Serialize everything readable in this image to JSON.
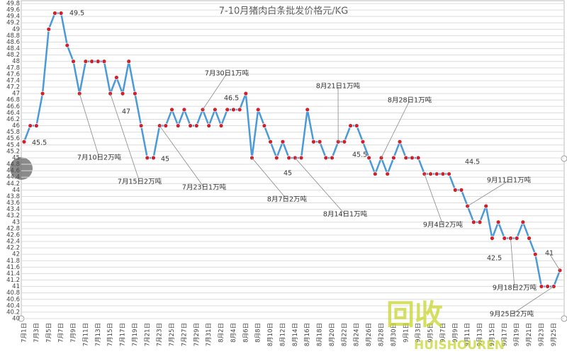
{
  "chart_data": {
    "type": "line",
    "title": "7-10月猪肉白条批发价格元/KG",
    "categories": [
      "7月1日",
      null,
      "7月3日",
      null,
      "7月5日",
      null,
      "7月7日",
      null,
      "7月9日",
      null,
      "7月11日",
      null,
      "7月13日",
      null,
      "7月15日",
      null,
      "7月17日",
      null,
      "7月19日",
      null,
      "7月21日",
      null,
      "7月23日",
      null,
      "7月25日",
      null,
      "7月27日",
      null,
      "7月29日",
      null,
      "7月31日",
      null,
      "8月2日",
      null,
      "8月4日",
      null,
      "8月6日",
      null,
      "8月8日",
      null,
      "8月10日",
      null,
      "8月12日",
      null,
      "8月14日",
      null,
      "8月16日",
      null,
      "8月18日",
      null,
      "8月20日",
      null,
      "8月22日",
      null,
      "8月24日",
      null,
      "8月26日",
      null,
      "8月28日",
      null,
      "8月30日",
      null,
      "9月1日",
      null,
      "9月3日",
      null,
      "9月5日",
      null,
      "9月7日",
      null,
      "9月9日",
      null,
      "9月11日",
      null,
      "9月13日",
      null,
      "9月15日",
      null,
      "9月17日",
      null,
      "9月19日",
      null,
      "9月21日",
      null,
      "9月23日",
      null,
      "9月25日",
      null
    ],
    "series": [
      {
        "name": "猪肉白条批发价格",
        "color": "#4a9ad8",
        "marker_color": "#d0202a",
        "values": [
          45.5,
          46,
          46,
          47,
          49,
          49.5,
          49.5,
          48.5,
          48,
          47,
          48,
          48,
          48,
          48,
          47,
          47.5,
          47,
          48,
          47,
          46,
          45,
          45,
          46,
          46,
          46.5,
          46,
          46.5,
          46,
          46,
          46.5,
          46,
          46.5,
          46,
          46.5,
          46.5,
          46.5,
          47,
          45,
          46.5,
          46,
          45.5,
          45,
          45.5,
          45,
          45,
          45,
          46.5,
          45.5,
          45.5,
          45,
          45,
          45.5,
          45.5,
          46,
          46,
          45.5,
          45,
          44.5,
          45,
          44.5,
          45,
          45.5,
          45,
          45,
          45,
          44.5,
          44.5,
          44.5,
          44.5,
          44.5,
          44,
          44,
          43.5,
          43,
          43,
          43.5,
          42.5,
          43,
          42.5,
          42.5,
          42.5,
          43,
          42.5,
          42,
          41,
          41,
          41,
          41.5
        ]
      }
    ],
    "ylim": [
      40,
      49.8
    ],
    "yticks": [
      40,
      40.2,
      40.4,
      40.6,
      40.8,
      41,
      41.2,
      41.4,
      41.6,
      41.8,
      42,
      42.2,
      42.4,
      42.6,
      42.8,
      43,
      43.2,
      43.4,
      43.6,
      43.8,
      44,
      44.2,
      44.4,
      44.6,
      44.8,
      45,
      45.2,
      45.4,
      45.6,
      45.8,
      46,
      46.2,
      46.4,
      46.6,
      46.8,
      47,
      47.2,
      47.4,
      47.6,
      47.8,
      48,
      48.2,
      48.4,
      48.6,
      48.8,
      49,
      49.2,
      49.4,
      49.6,
      49.8
    ],
    "grid": true,
    "annotations": [
      "49.5",
      "45.5",
      "47",
      "45",
      "46.5",
      "45",
      "45.5",
      "44.5",
      "42.5",
      "41",
      "7月10日2万吨",
      "7月15日2万吨",
      "7月23日1万吨",
      "7月30日1万吨",
      "8月7日2万吨",
      "8月14日1万吨",
      "8月21日1万吨",
      "8月28日1万吨",
      "9月4日2万吨",
      "9月11日1万吨",
      "9月18日2万吨",
      "9月25日2万吨"
    ],
    "watermark": [
      "回收",
      "HUISHOUREN"
    ]
  }
}
